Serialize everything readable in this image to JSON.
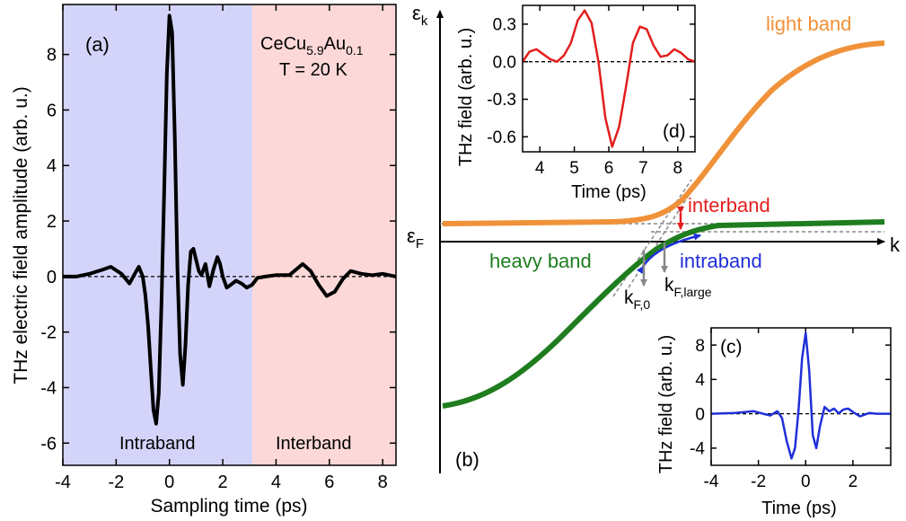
{
  "panel_a": {
    "label": "(a)",
    "material": "CeCu",
    "material_sub1": "5.9",
    "material_mid": "Au",
    "material_sub2": "0.1",
    "temperature": "T = 20 K",
    "region_left_label": "Intraband",
    "region_right_label": "Interband",
    "colors": {
      "intraband_region": "#d4d4fb",
      "interband_region": "#fdd8d8",
      "trace": "#000000"
    }
  },
  "panel_b": {
    "label": "(b)",
    "y_axis_symbol": "ε",
    "y_axis_sub": "k",
    "fermi_symbol": "ε",
    "fermi_sub": "F",
    "x_axis_symbol": "k",
    "light_band_label": "light band",
    "heavy_band_label": "heavy band",
    "interband_label": "interband",
    "intraband_label": "intraband",
    "kf0_main": "k",
    "kf0_sub": "F,0",
    "kflarge_main": "k",
    "kflarge_sub": "F,large",
    "colors": {
      "light_band": "#f0923a",
      "heavy_band": "#1f7d1f",
      "interband": "#e31e1e",
      "intraband": "#1f30d8",
      "guide": "#888888"
    }
  },
  "chart_data": [
    {
      "id": "a",
      "type": "line",
      "xlabel": "Sampling time (ps)",
      "ylabel": "THz electric field amplitude (arb. u.)",
      "xlim": [
        -4,
        8.5
      ],
      "ylim": [
        -6.8,
        9.8
      ],
      "xticks": [
        -4,
        -2,
        0,
        2,
        4,
        6,
        8
      ],
      "yticks": [
        -6,
        -4,
        -2,
        0,
        2,
        4,
        6,
        8
      ],
      "region_split_x": 3.0,
      "series": [
        {
          "color": "#000000",
          "x": [
            -4,
            -3.5,
            -3,
            -2.5,
            -2.2,
            -1.8,
            -1.5,
            -1.3,
            -1.15,
            -1.0,
            -0.9,
            -0.8,
            -0.7,
            -0.6,
            -0.5,
            -0.4,
            -0.3,
            -0.2,
            -0.1,
            0.0,
            0.1,
            0.2,
            0.3,
            0.4,
            0.5,
            0.6,
            0.7,
            0.8,
            0.9,
            1.0,
            1.1,
            1.2,
            1.35,
            1.5,
            1.65,
            1.8,
            1.9,
            2.0,
            2.15,
            2.3,
            2.5,
            2.7,
            2.9,
            3.1,
            3.3,
            3.6,
            4.0,
            4.5,
            5.0,
            5.3,
            5.6,
            5.9,
            6.2,
            6.5,
            6.8,
            7.2,
            7.6,
            8.0,
            8.5
          ],
          "y": [
            0.0,
            0.0,
            0.1,
            0.25,
            0.35,
            0.1,
            -0.25,
            0.1,
            0.35,
            0.0,
            -0.7,
            -1.8,
            -3.3,
            -4.8,
            -5.3,
            -4.2,
            -1.0,
            3.0,
            7.3,
            9.4,
            8.8,
            5.0,
            0.3,
            -2.8,
            -3.9,
            -2.5,
            -0.3,
            0.9,
            1.0,
            0.6,
            0.2,
            0.05,
            0.45,
            -0.35,
            0.25,
            0.7,
            0.45,
            0.0,
            -0.4,
            -0.3,
            -0.15,
            -0.25,
            -0.4,
            -0.3,
            -0.05,
            0.0,
            0.05,
            0.05,
            0.45,
            0.2,
            -0.3,
            -0.7,
            -0.55,
            -0.1,
            0.2,
            0.1,
            0.05,
            0.1,
            0.0
          ]
        }
      ]
    },
    {
      "id": "d",
      "label": "(d)",
      "type": "line",
      "xlabel": "Time (ps)",
      "ylabel": "THz field (arb. u.)",
      "xlim": [
        3.5,
        8.5
      ],
      "ylim": [
        -0.72,
        0.45
      ],
      "xticks": [
        4,
        5,
        6,
        7,
        8
      ],
      "yticks": [
        -0.6,
        -0.3,
        0.0,
        0.3
      ],
      "ytick_labels": [
        "-0.6",
        "-0.3",
        "0.0",
        "0.3"
      ],
      "series": [
        {
          "color": "#e31e1e",
          "x": [
            3.5,
            3.7,
            3.9,
            4.1,
            4.3,
            4.5,
            4.7,
            4.9,
            5.1,
            5.3,
            5.5,
            5.7,
            5.9,
            6.1,
            6.3,
            6.5,
            6.7,
            6.9,
            7.1,
            7.3,
            7.5,
            7.7,
            7.9,
            8.1,
            8.3,
            8.5
          ],
          "y": [
            0.0,
            0.08,
            0.1,
            0.06,
            0.02,
            0.0,
            0.05,
            0.15,
            0.33,
            0.41,
            0.31,
            0.0,
            -0.45,
            -0.68,
            -0.52,
            -0.2,
            0.15,
            0.28,
            0.26,
            0.13,
            0.04,
            0.05,
            0.1,
            0.07,
            0.02,
            0.0
          ]
        }
      ]
    },
    {
      "id": "c",
      "label": "(c)",
      "type": "line",
      "xlabel": "Time (ps)",
      "ylabel": "THz field (arb. u.)",
      "xlim": [
        -4,
        3.6
      ],
      "ylim": [
        -6.0,
        10.0
      ],
      "xticks": [
        -4,
        -2,
        0,
        2
      ],
      "yticks": [
        -4,
        0,
        4,
        8
      ],
      "series": [
        {
          "color": "#1f30d8",
          "x": [
            -4,
            -3.0,
            -2.2,
            -1.8,
            -1.5,
            -1.2,
            -1.0,
            -0.8,
            -0.6,
            -0.45,
            -0.3,
            -0.15,
            0.0,
            0.15,
            0.3,
            0.45,
            0.6,
            0.8,
            1.0,
            1.2,
            1.4,
            1.6,
            1.8,
            2.0,
            2.3,
            2.7,
            3.0,
            3.6
          ],
          "y": [
            0.0,
            0.1,
            0.3,
            0.0,
            -0.2,
            0.3,
            -0.5,
            -3.2,
            -5.2,
            -4.0,
            0.5,
            6.5,
            9.4,
            5.0,
            -2.5,
            -4.0,
            -1.5,
            0.8,
            0.3,
            0.6,
            0.05,
            0.5,
            0.6,
            0.2,
            -0.3,
            0.1,
            0.0,
            0.0
          ]
        }
      ]
    }
  ]
}
